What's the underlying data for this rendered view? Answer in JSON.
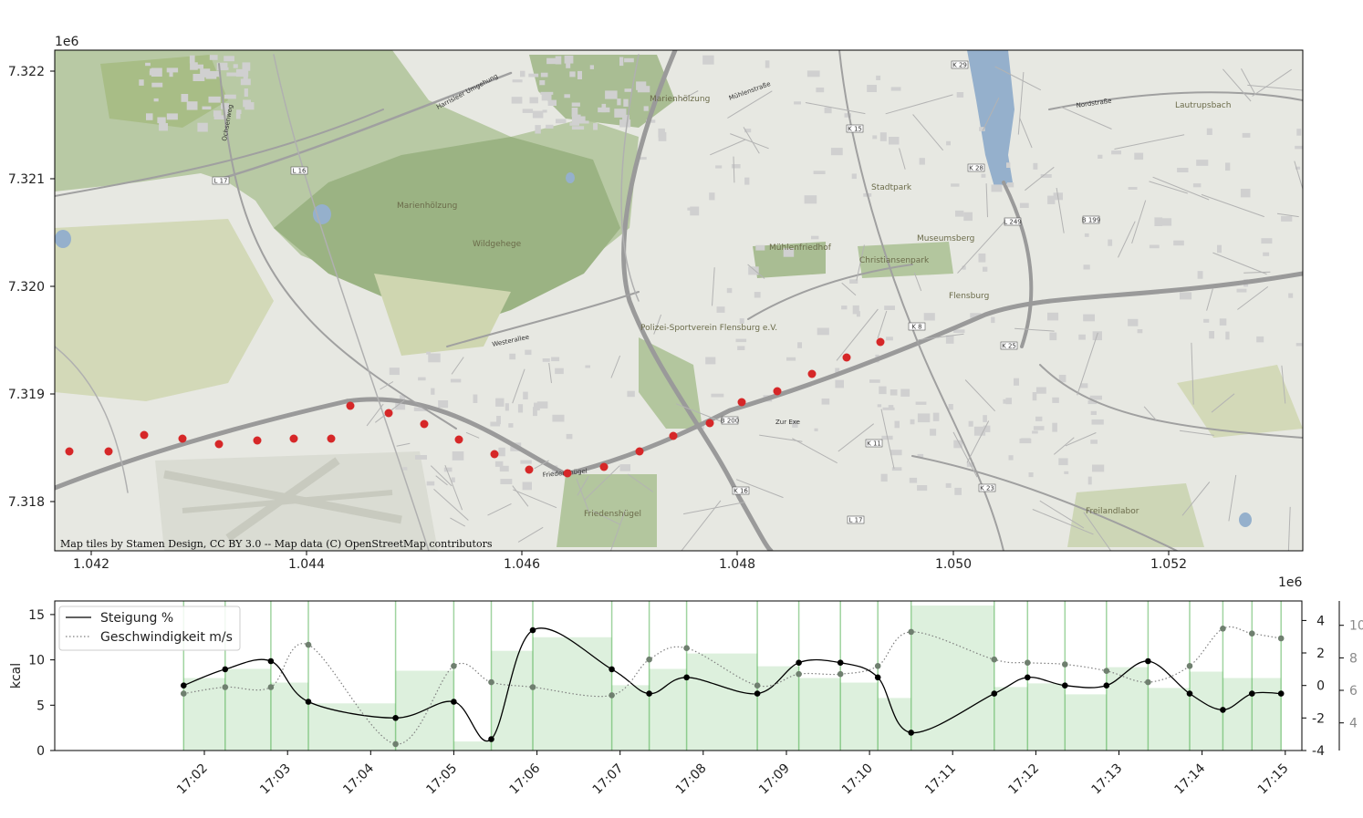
{
  "map": {
    "attribution": "Map tiles by Stamen Design, CC BY 3.0 -- Map data (C) OpenStreetMap contributors",
    "x_offset_label": "1e6",
    "y_offset_label": "1e6",
    "x_ticks": [
      "1.042",
      "1.044",
      "1.046",
      "1.048",
      "1.050",
      "1.052"
    ],
    "y_ticks": [
      "7.322",
      "7.321",
      "7.320",
      "7.319",
      "7.318"
    ],
    "place_labels": [
      "Marienhölzung",
      "Marienhölzung",
      "Wildgehege",
      "Mühlenfriedhof",
      "Christiansenpark",
      "Museumsberg",
      "Stadtpark",
      "Flensburg",
      "Friedenshügel",
      "Freilandlabor",
      "Lautrupsbach",
      "Polizei-Sportverein Flensburg e.V."
    ],
    "street_labels": [
      "Westerallee",
      "Friedenshügel",
      "Zur Exe",
      "Nordstraße",
      "Ochsenweg",
      "Harrisleer Umgehung",
      "Mühlenstraße"
    ],
    "road_badges": [
      "L 17",
      "L 16",
      "K 15",
      "K 29",
      "K 28",
      "L 249",
      "B 199",
      "B 200",
      "K 16",
      "K 8",
      "K 25",
      "K 11",
      "K 23",
      "L 17"
    ],
    "colors": {
      "route_point": "#d62728",
      "water": "#95b0cc",
      "forest": "#9bb383",
      "road": "#9a9a9a"
    }
  },
  "chart_data": {
    "type": "line",
    "legend_placement": "upper-left",
    "x_ticks": [
      "17:02",
      "17:03",
      "17:04",
      "17:05",
      "17:06",
      "17:07",
      "17:08",
      "17:09",
      "17:10",
      "17:11",
      "17:12",
      "17:13",
      "17:14",
      "17:15"
    ],
    "ylabel": "kcal",
    "y_ticks_left": [
      "0",
      "5",
      "10",
      "15"
    ],
    "y_ticks_right1": [
      "-4",
      "-2",
      "0",
      "2",
      "4"
    ],
    "y_ticks_right2": [
      "4",
      "6",
      "8",
      "10"
    ],
    "ylim_left": [
      0,
      16.5
    ],
    "ylim_right1": [
      -4,
      5.2
    ],
    "ylim_right2": [
      2.3,
      11.5
    ],
    "xlim_min": [
      -0.8,
      14.2
    ],
    "bars": {
      "name": "kcal",
      "color": "#2ca02c",
      "bins": [
        {
          "start": 0.75,
          "end": 1.25,
          "value": 8.0
        },
        {
          "start": 1.25,
          "end": 1.8,
          "value": 9.0
        },
        {
          "start": 1.8,
          "end": 2.25,
          "value": 7.5
        },
        {
          "start": 2.25,
          "end": 3.3,
          "value": 5.2
        },
        {
          "start": 3.3,
          "end": 4.0,
          "value": 8.8
        },
        {
          "start": 4.0,
          "end": 4.45,
          "value": 1.0
        },
        {
          "start": 4.45,
          "end": 4.95,
          "value": 11.0
        },
        {
          "start": 4.95,
          "end": 5.9,
          "value": 12.5
        },
        {
          "start": 5.9,
          "end": 6.35,
          "value": 7.2
        },
        {
          "start": 6.35,
          "end": 6.8,
          "value": 9.0
        },
        {
          "start": 6.8,
          "end": 7.65,
          "value": 10.7
        },
        {
          "start": 7.65,
          "end": 8.15,
          "value": 9.3
        },
        {
          "start": 8.15,
          "end": 8.65,
          "value": 8.0
        },
        {
          "start": 8.65,
          "end": 9.1,
          "value": 7.5
        },
        {
          "start": 9.1,
          "end": 9.5,
          "value": 5.8
        },
        {
          "start": 9.5,
          "end": 10.5,
          "value": 16.0
        },
        {
          "start": 10.5,
          "end": 10.9,
          "value": 7.0
        },
        {
          "start": 10.9,
          "end": 11.35,
          "value": 7.4
        },
        {
          "start": 11.35,
          "end": 11.85,
          "value": 6.2
        },
        {
          "start": 11.85,
          "end": 12.35,
          "value": 9.2
        },
        {
          "start": 12.35,
          "end": 12.85,
          "value": 6.9
        },
        {
          "start": 12.85,
          "end": 13.25,
          "value": 8.7
        },
        {
          "start": 13.25,
          "end": 13.6,
          "value": 8.0
        },
        {
          "start": 13.6,
          "end": 13.95,
          "value": 8.0
        }
      ]
    },
    "series": [
      {
        "name": "Steigung %",
        "axis": "right1",
        "style": "solid",
        "color": "#000000",
        "x": [
          0.75,
          1.25,
          1.8,
          2.25,
          3.3,
          4.0,
          4.45,
          4.95,
          5.9,
          6.35,
          6.8,
          7.65,
          8.15,
          8.65,
          9.1,
          9.5,
          10.5,
          10.9,
          11.35,
          11.85,
          12.35,
          12.85,
          13.25,
          13.6,
          13.95
        ],
        "values": [
          0.0,
          1.0,
          1.5,
          -1.0,
          -2.0,
          -1.0,
          -3.3,
          3.4,
          1.0,
          -0.5,
          0.5,
          -0.5,
          1.4,
          1.4,
          0.5,
          -2.9,
          -0.5,
          0.5,
          0.0,
          0.0,
          1.5,
          -0.5,
          -1.5,
          -0.5,
          -0.5
        ]
      },
      {
        "name": "Geschwindigkeit m/s",
        "axis": "right2",
        "style": "dotted",
        "color": "#7f7f7f",
        "x": [
          0.75,
          1.25,
          1.8,
          2.25,
          3.3,
          4.0,
          4.45,
          4.95,
          5.9,
          6.35,
          6.8,
          7.65,
          8.15,
          8.65,
          9.1,
          9.5,
          10.5,
          10.9,
          11.35,
          11.85,
          12.35,
          12.85,
          13.25,
          13.6,
          13.95
        ],
        "values": [
          5.8,
          6.2,
          6.2,
          8.8,
          2.7,
          7.5,
          6.5,
          6.2,
          5.7,
          7.9,
          8.6,
          6.3,
          7.0,
          7.0,
          7.5,
          9.6,
          7.9,
          7.7,
          7.6,
          7.2,
          6.5,
          7.5,
          9.8,
          9.5,
          9.2
        ]
      }
    ]
  }
}
